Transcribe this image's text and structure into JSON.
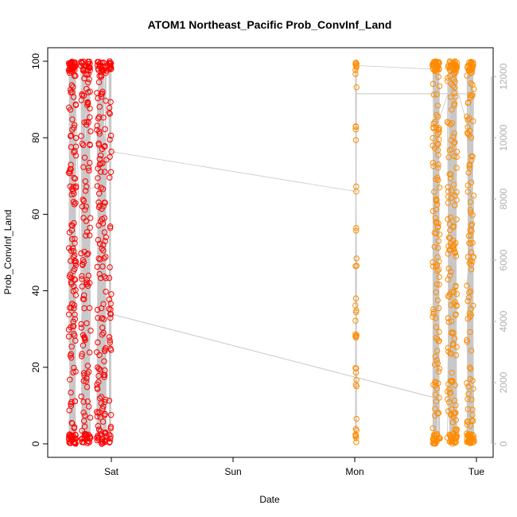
{
  "chart_data": {
    "type": "scatter",
    "title": "ATOM1 Northeast_Pacific Prob_ConvInf_Land",
    "xlabel": "Date",
    "ylabel": "Prob_ConvInf_Land",
    "x_ticks": [
      "Sat",
      "Sun",
      "Mon",
      "Tue"
    ],
    "x_tick_positions_days": [
      0,
      1,
      2,
      3
    ],
    "xlim_days": [
      -0.45,
      3.08
    ],
    "ylim": [
      0,
      100
    ],
    "y_ticks": [
      0,
      20,
      40,
      60,
      80,
      100
    ],
    "secondary_axis": {
      "position": "right",
      "ticks": [
        0,
        2000,
        4000,
        6000,
        8000,
        10000,
        12000
      ],
      "ylim": [
        0,
        12500
      ],
      "color": "#b0b0b0"
    },
    "marker": "open-circle",
    "grid": false,
    "colors": {
      "group1": "#ff0000",
      "group2": "#ff8c00",
      "line": "#c8c8c8"
    },
    "groups": [
      {
        "color": "#ff0000",
        "x_range_days": [
          -0.38,
          0.0
        ],
        "clusters": [
          {
            "x_center": -0.32,
            "x_spread": 0.03,
            "count": 170
          },
          {
            "x_center": -0.21,
            "x_spread": 0.04,
            "count": 150
          },
          {
            "x_center": -0.08,
            "x_spread": 0.04,
            "count": 160
          },
          {
            "x_center": -0.01,
            "x_spread": 0.01,
            "count": 50
          }
        ]
      },
      {
        "color": "#ff8c00",
        "x_range_days": [
          1.99,
          3.0
        ],
        "clusters": [
          {
            "x_center": 2.01,
            "x_spread": 0.005,
            "count": 45
          },
          {
            "x_center": 2.67,
            "x_spread": 0.03,
            "count": 160
          },
          {
            "x_center": 2.8,
            "x_spread": 0.04,
            "count": 190
          },
          {
            "x_center": 2.95,
            "x_spread": 0.03,
            "count": 150
          }
        ]
      }
    ],
    "connector_line": [
      [
        -0.01,
        34
      ],
      [
        2.66,
        12
      ]
    ],
    "upper_flat_line": [
      [
        2.01,
        91.5
      ],
      [
        3.0,
        91.5
      ]
    ]
  }
}
